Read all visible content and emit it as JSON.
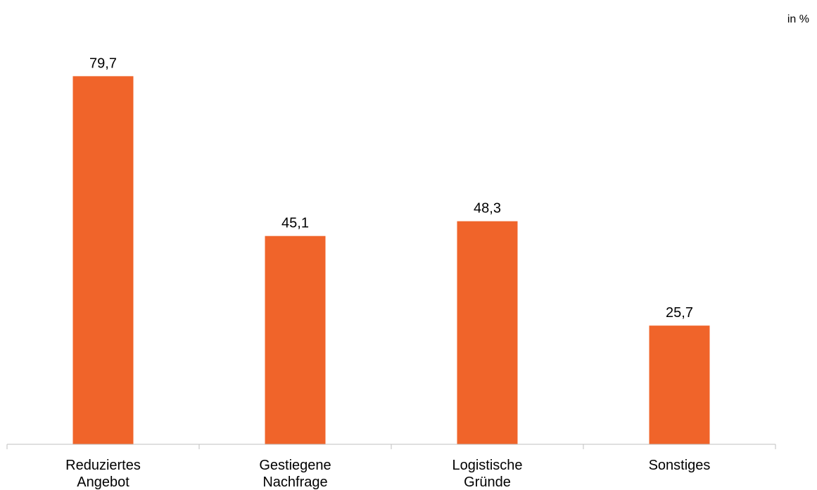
{
  "chart_data": {
    "type": "bar",
    "unit_label": "in %",
    "categories": [
      [
        "Reduziertes",
        "Angebot"
      ],
      [
        "Gestiegene",
        "Nachfrage"
      ],
      [
        "Logistische",
        "Gründe"
      ],
      [
        "Sonstiges"
      ]
    ],
    "values": [
      79.7,
      45.1,
      48.3,
      25.7
    ],
    "value_labels": [
      "79,7",
      "45,1",
      "48,3",
      "25,7"
    ],
    "ylim": [
      0,
      100
    ],
    "grid": false,
    "legend": "none",
    "bar_color": "#F0642A",
    "axis_color": "#BFBFBF"
  }
}
